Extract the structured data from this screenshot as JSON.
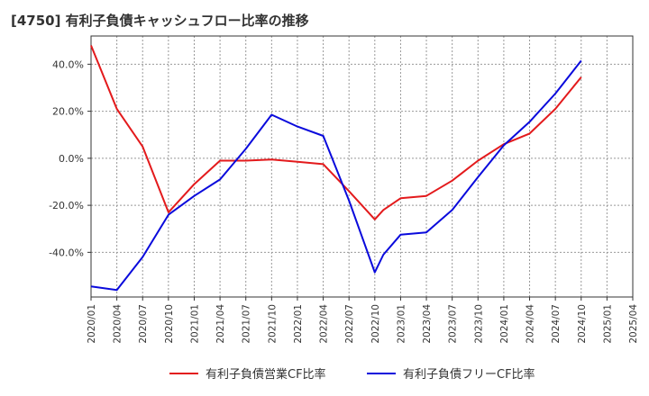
{
  "chart_data": {
    "type": "line",
    "title": "[4750]  有利子負債キャッシュフロー比率の推移",
    "xlabel": "",
    "ylabel": "",
    "x_ticks": [
      "2020/01",
      "2020/04",
      "2020/07",
      "2020/10",
      "2021/01",
      "2021/04",
      "2021/07",
      "2021/10",
      "2022/01",
      "2022/04",
      "2022/07",
      "2022/10",
      "2023/01",
      "2023/04",
      "2023/07",
      "2023/10",
      "2024/01",
      "2024/04",
      "2024/07",
      "2024/10",
      "2025/01",
      "2025/04"
    ],
    "y_ticks": [
      40,
      20,
      0,
      -20,
      -40
    ],
    "y_tick_labels": [
      "40.0%",
      "20.0%",
      "0.0%",
      "-20.0%",
      "-40.0%"
    ],
    "ylim": [
      -59,
      52
    ],
    "grid": true,
    "legend_position": "bottom",
    "series": [
      {
        "name": "有利子負債営業CF比率",
        "color": "#e31a1c",
        "points": [
          [
            "2020/01",
            48
          ],
          [
            "2020/04",
            21
          ],
          [
            "2020/07",
            5
          ],
          [
            "2020/10",
            -23
          ],
          [
            "2021/01",
            -11
          ],
          [
            "2021/04",
            -1
          ],
          [
            "2021/07",
            -1
          ],
          [
            "2021/10",
            -0.5
          ],
          [
            "2022/01",
            -1.5
          ],
          [
            "2022/04",
            -2.5
          ],
          [
            "2022/07",
            -14
          ],
          [
            "2022/10",
            -26
          ],
          [
            "2022/11",
            -22
          ],
          [
            "2023/01",
            -17
          ],
          [
            "2023/04",
            -16
          ],
          [
            "2023/07",
            -9.5
          ],
          [
            "2023/10",
            -1
          ],
          [
            "2024/01",
            6
          ],
          [
            "2024/04",
            10.5
          ],
          [
            "2024/07",
            21
          ],
          [
            "2024/10",
            34.5
          ]
        ]
      },
      {
        "name": "有利子負債フリーCF比率",
        "color": "#0a0adc",
        "points": [
          [
            "2020/01",
            -54.5
          ],
          [
            "2020/04",
            -56
          ],
          [
            "2020/07",
            -42
          ],
          [
            "2020/10",
            -24
          ],
          [
            "2021/01",
            -16
          ],
          [
            "2021/04",
            -9
          ],
          [
            "2021/07",
            4
          ],
          [
            "2021/10",
            18.5
          ],
          [
            "2022/01",
            13.5
          ],
          [
            "2022/04",
            9.5
          ],
          [
            "2022/07",
            -18
          ],
          [
            "2022/10",
            -48.5
          ],
          [
            "2022/11",
            -41
          ],
          [
            "2023/01",
            -32.5
          ],
          [
            "2023/04",
            -31.5
          ],
          [
            "2023/07",
            -22
          ],
          [
            "2023/10",
            -8
          ],
          [
            "2024/01",
            5.5
          ],
          [
            "2024/04",
            15.5
          ],
          [
            "2024/07",
            27.5
          ],
          [
            "2024/10",
            41.5
          ]
        ]
      }
    ]
  }
}
